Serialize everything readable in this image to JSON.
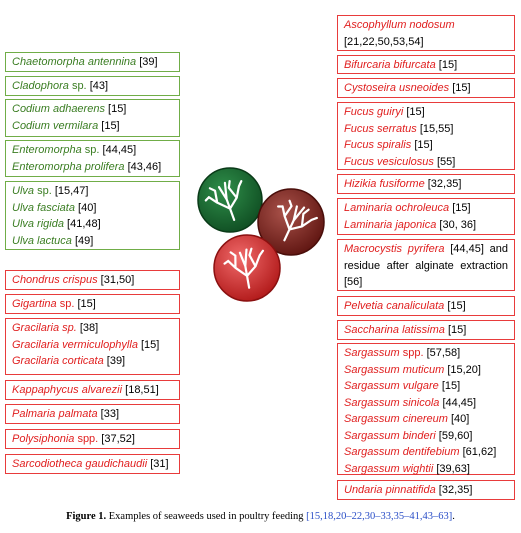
{
  "left_green": [
    {
      "lines": [
        {
          "name": "Chaetomorpha antennina",
          "ref": "[39]"
        }
      ]
    },
    {
      "lines": [
        {
          "name": "Cladophora",
          "plain": "sp.",
          "ref": "[43]"
        }
      ]
    },
    {
      "lines": [
        {
          "name": "Codium adhaerens",
          "ref": "[15]"
        },
        {
          "name": "Codium vermilara",
          "ref": "[15]"
        }
      ]
    },
    {
      "lines": [
        {
          "name": "Enteromorpha",
          "plain": "sp.",
          "ref": "[44,45]"
        },
        {
          "name": "Enteromorpha prolifera",
          "ref": "[43,46]"
        }
      ]
    },
    {
      "lines": [
        {
          "name": "Ulva",
          "plain": "sp.",
          "ref": "[15,47]"
        },
        {
          "name": "Ulva fasciata",
          "ref": "[40]"
        },
        {
          "name": "Ulva rigida",
          "ref": "[41,48]"
        },
        {
          "name": "Ulva lactuca",
          "ref": "[49]"
        }
      ]
    }
  ],
  "left_red": [
    {
      "lines": [
        {
          "name": "Chondrus crispus",
          "ref": "[31,50]"
        }
      ]
    },
    {
      "lines": [
        {
          "name": "Gigartina",
          "plain": "sp.",
          "ref": "[15]"
        }
      ]
    },
    {
      "lines": [
        {
          "name": "Gracilaria sp.",
          "ref": "[38]"
        },
        {
          "name": "Gracilaria vermiculophylla",
          "ref": "[15]"
        },
        {
          "name": "Gracilaria corticata",
          "ref": "[39]"
        }
      ]
    },
    {
      "lines": [
        {
          "name": "Kappaphycus alvarezii",
          "ref": "[18,51]"
        }
      ]
    },
    {
      "lines": [
        {
          "name": "Palmaria palmata",
          "ref": "[33]"
        }
      ]
    },
    {
      "lines": [
        {
          "name": "Polysiphonia",
          "plain": "spp.",
          "ref": "[37,52]"
        }
      ]
    },
    {
      "lines": [
        {
          "name": "Sarcodiotheca gaudichaudii",
          "ref": "[31]"
        }
      ]
    }
  ],
  "right": [
    {
      "lines": [
        {
          "name": "Ascophyllum nodosum"
        },
        {
          "ref": "[21,22,50,53,54]"
        }
      ]
    },
    {
      "lines": [
        {
          "name": "Bifurcaria bifurcata",
          "ref": "[15]"
        }
      ]
    },
    {
      "lines": [
        {
          "name": "Cystoseira usneoides",
          "ref": "[15]"
        }
      ]
    },
    {
      "lines": [
        {
          "name": "Fucus guiryi",
          "ref": "[15]"
        },
        {
          "name": "Fucus serratus",
          "ref": "[15,55]"
        },
        {
          "name": "Fucus spiralis",
          "ref": "[15]"
        },
        {
          "name": "Fucus vesiculosus",
          "ref": "[55]"
        }
      ]
    },
    {
      "lines": [
        {
          "name": "Hizikia fusiforme",
          "ref": "[32,35]"
        }
      ]
    },
    {
      "lines": [
        {
          "name": "Laminaria ochroleuca",
          "ref": "[15]"
        },
        {
          "name": "Laminaria japonica",
          "ref": "[30, 36]"
        }
      ]
    },
    {
      "lines": [
        {
          "name": "Macrocystis pyrifera",
          "ref": "[44,45]"
        },
        {
          "text": "and residue after alginate extraction",
          "ref": "[56]"
        }
      ]
    },
    {
      "lines": [
        {
          "name": "Pelvetia canaliculata",
          "ref": "[15]"
        }
      ]
    },
    {
      "lines": [
        {
          "name": "Saccharina latissima",
          "ref": "[15]"
        }
      ]
    },
    {
      "lines": [
        {
          "name": "Sargassum",
          "plain": "spp.",
          "ref": "[57,58]"
        },
        {
          "name": "Sargassum muticum",
          "ref": "[15,20]"
        },
        {
          "name": "Sargassum vulgare",
          "ref": "[15]"
        },
        {
          "name": "Sargassum sinicola",
          "ref": "[44,45]"
        },
        {
          "name": "Sargassum cinereum",
          "ref": "[40]"
        },
        {
          "name": "Sargassum binderi",
          "ref": "[59,60]"
        },
        {
          "name": "Sargassum dentifebium",
          "ref": "[61,62]"
        },
        {
          "name": "Sargassum wightii",
          "ref": "[39,63]"
        }
      ]
    },
    {
      "lines": [
        {
          "name": "Undaria pinnatifida",
          "ref": "[32,35]"
        }
      ]
    }
  ],
  "caption": {
    "label": "Figure 1.",
    "text": "Examples of seaweeds used in poultry feeding",
    "refs": "[15,18,20–22,30–33,35–41,43–63]"
  }
}
